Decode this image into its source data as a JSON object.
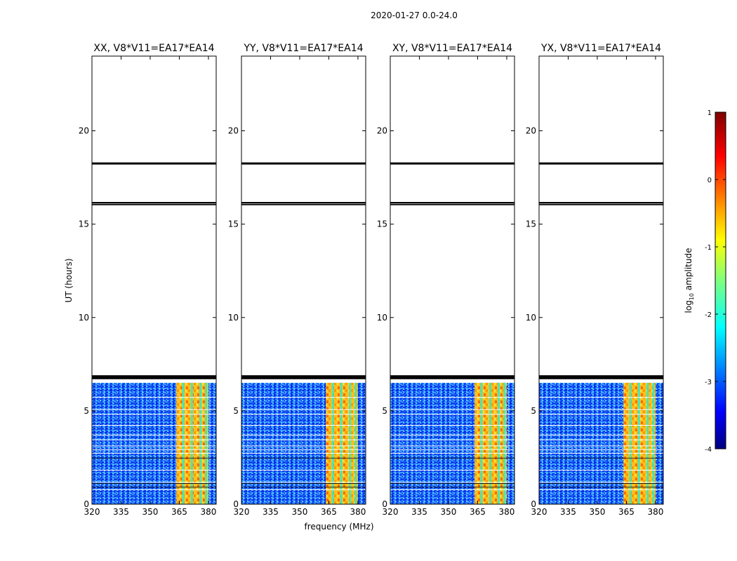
{
  "suptitle": "2020-01-27 0.0-24.0",
  "chart_data": {
    "type": "heatmap",
    "panels": [
      {
        "title": "XX, V8*V11=EA17*EA14",
        "band_start": 363.5,
        "band_end": 380.0
      },
      {
        "title": "YY, V8*V11=EA17*EA14",
        "band_start": 363.5,
        "band_end": 380.0
      },
      {
        "title": "XY, V8*V11=EA17*EA14",
        "band_start": 363.5,
        "band_end": 380.0
      },
      {
        "title": "YX, V8*V11=EA17*EA14",
        "band_start": 363.5,
        "band_end": 380.0
      }
    ],
    "xlabel": "frequency (MHz)",
    "ylabel": "UT (hours)",
    "xlim": [
      320,
      384
    ],
    "ylim": [
      0,
      24
    ],
    "xticks": [
      320,
      335,
      350,
      365,
      380
    ],
    "yticks": [
      0,
      5,
      10,
      15,
      20
    ],
    "data_time_range": [
      0.0,
      6.5
    ],
    "flag_lines_hours": [
      6.75,
      6.85,
      16.05,
      16.15,
      18.25
    ],
    "colorbar": {
      "label": "log10 amplitude",
      "range": [
        -4,
        1
      ],
      "ticks": [
        1,
        0,
        -1,
        -2,
        -3,
        -4
      ]
    }
  }
}
